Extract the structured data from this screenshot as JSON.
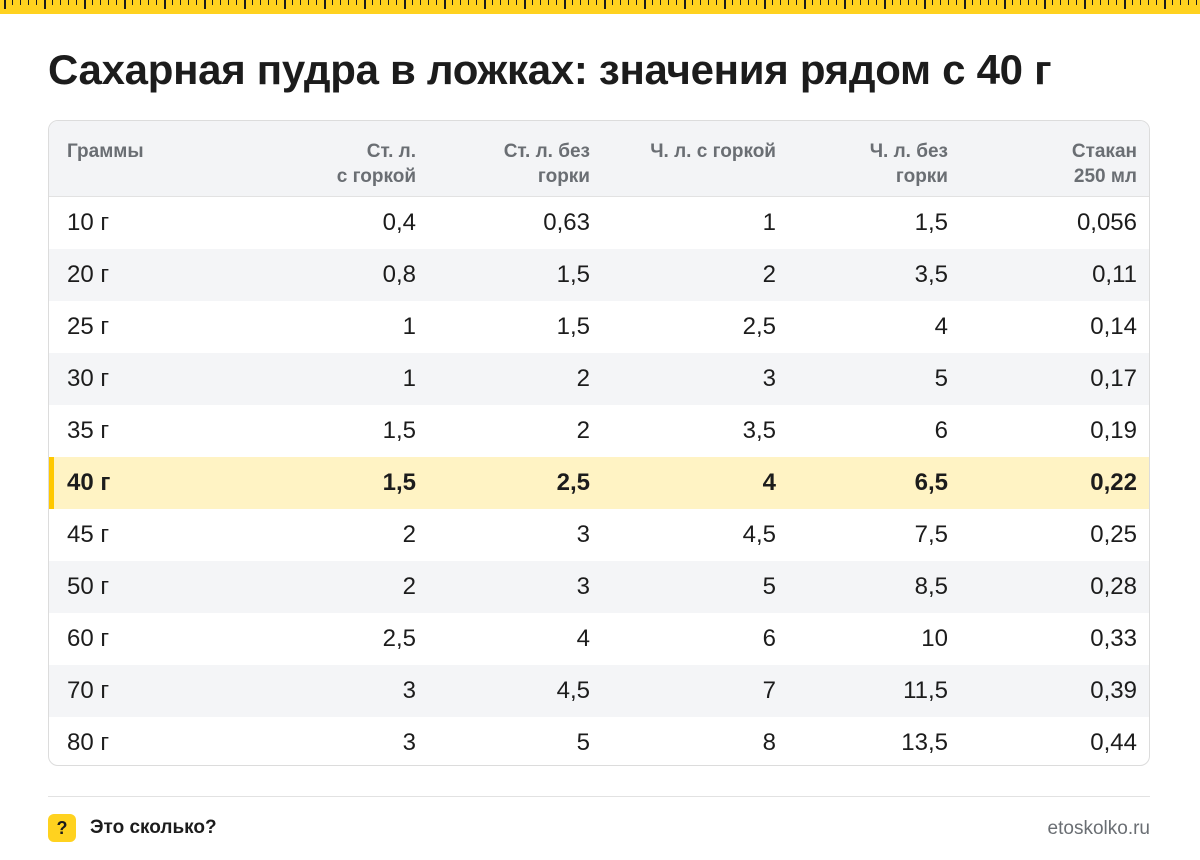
{
  "title": "Сахарная пудра в ложках: значения рядом с 40 г",
  "colors": {
    "accent": "#ffd21f",
    "highlight_row": "#fff3c4",
    "highlight_bar": "#ffc800",
    "header_bg": "#f3f4f6"
  },
  "table": {
    "headers": [
      {
        "l1": "Граммы",
        "l2": ""
      },
      {
        "l1": "Ст. л.",
        "l2": "с горкой"
      },
      {
        "l1": "Ст. л. без",
        "l2": "горки"
      },
      {
        "l1": "Ч. л. с горкой",
        "l2": ""
      },
      {
        "l1": "Ч. л. без",
        "l2": "горки"
      },
      {
        "l1": "Стакан",
        "l2": "250 мл"
      }
    ],
    "highlighted_row": 5,
    "rows": [
      [
        "10 г",
        "0,4",
        "0,63",
        "1",
        "1,5",
        "0,056"
      ],
      [
        "20 г",
        "0,8",
        "1,5",
        "2",
        "3,5",
        "0,11"
      ],
      [
        "25 г",
        "1",
        "1,5",
        "2,5",
        "4",
        "0,14"
      ],
      [
        "30 г",
        "1",
        "2",
        "3",
        "5",
        "0,17"
      ],
      [
        "35 г",
        "1,5",
        "2",
        "3,5",
        "6",
        "0,19"
      ],
      [
        "40 г",
        "1,5",
        "2,5",
        "4",
        "6,5",
        "0,22"
      ],
      [
        "45 г",
        "2",
        "3",
        "4,5",
        "7,5",
        "0,25"
      ],
      [
        "50 г",
        "2",
        "3",
        "5",
        "8,5",
        "0,28"
      ],
      [
        "60 г",
        "2,5",
        "4",
        "6",
        "10",
        "0,33"
      ],
      [
        "70 г",
        "3",
        "4,5",
        "7",
        "11,5",
        "0,39"
      ],
      [
        "80 г",
        "3",
        "5",
        "8",
        "13,5",
        "0,44"
      ]
    ]
  },
  "footer": {
    "badge_icon": "question-icon",
    "badge_text": "?",
    "brand": "Это сколько?",
    "site": "etoskolko.ru"
  }
}
